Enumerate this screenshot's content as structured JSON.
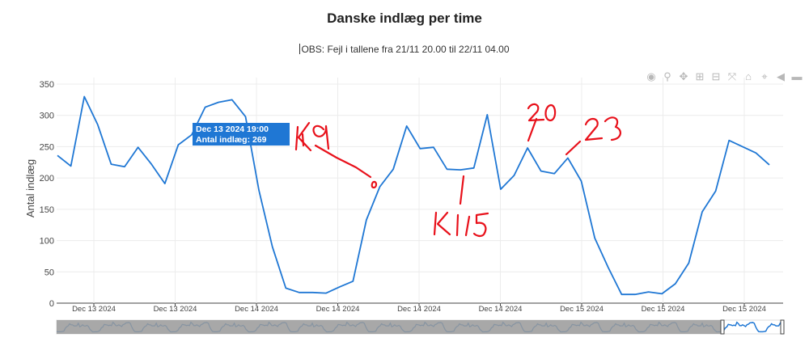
{
  "title": "Danske indlæg per time",
  "subtitle": "OBS: Fejl i tallene fra 21/11 20.00 til 22/11 04.00",
  "colors": {
    "line": "#1f77d4",
    "tooltip_bg": "#1f77d4",
    "annotation": "#e8101a",
    "grid": "#ececec",
    "rangeslider_mask": "#999999"
  },
  "modebar": {
    "icons": [
      "camera-icon",
      "zoom-icon",
      "pan-icon",
      "zoom-in-icon",
      "zoom-out-icon",
      "autoscale-icon",
      "home-icon",
      "spike-lines-icon",
      "hover-closest-icon",
      "hover-compare-icon"
    ]
  },
  "tooltip": {
    "line1": "Dec 13 2024 19:00",
    "line2": "Antal indlæg: 269"
  },
  "annotations": {
    "k19": "Kl 9",
    "k115": "Kl 15",
    "n20": "20",
    "n23": "23"
  },
  "chart_data": {
    "type": "line",
    "title": "Danske indlæg per time",
    "subtitle": "OBS: Fejl i tallene fra 21/11 20.00 til 22/11 04.00",
    "ylabel": "Antal indlæg",
    "xlabel": "",
    "ylim": [
      0,
      350
    ],
    "yticks": [
      0,
      50,
      100,
      150,
      200,
      250,
      300,
      350
    ],
    "xtick_labels": [
      "Dec 13 2024",
      "Dec 13 2024",
      "Dec 14 2024",
      "Dec 14 2024",
      "Dec 14 2024",
      "Dec 14 2024",
      "Dec 15 2024",
      "Dec 15 2024",
      "Dec 15 2024"
    ],
    "grid": true,
    "series": [
      {
        "values": [
          236,
          219,
          330,
          285,
          222,
          218,
          249,
          222,
          191,
          253,
          269,
          313,
          321,
          325,
          298,
          180,
          90,
          24,
          17,
          17,
          16,
          26,
          35,
          133,
          186,
          214,
          283,
          247,
          249,
          214,
          213,
          216,
          301,
          182,
          204,
          248,
          211,
          207,
          232,
          195,
          104,
          57,
          14,
          14,
          18,
          15,
          31,
          64,
          146,
          179,
          260,
          250,
          240,
          221
        ]
      }
    ]
  }
}
